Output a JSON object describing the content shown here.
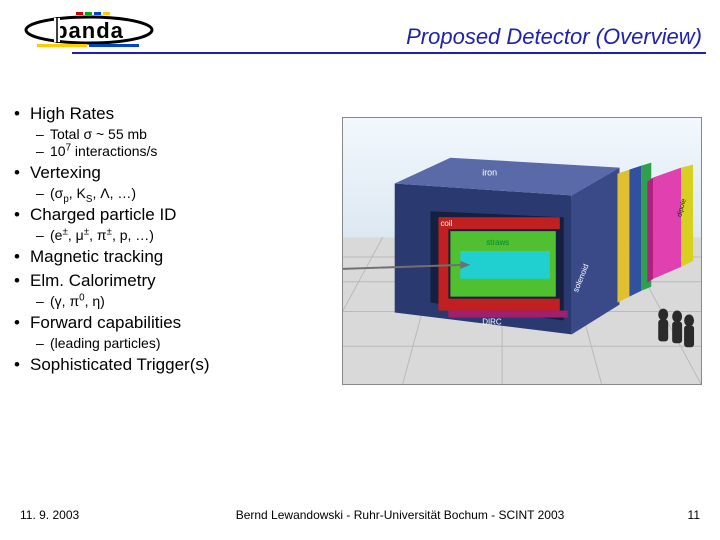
{
  "header": {
    "title": "Proposed Detector (Overview)",
    "title_color": "#2020b0",
    "rule_color": "#2020b0"
  },
  "logo": {
    "text": "panda",
    "bars": [
      "#cc0000",
      "#00aa00",
      "#0044cc",
      "#ffcc00"
    ]
  },
  "bullets": [
    {
      "level": 1,
      "html": "High Rates"
    },
    {
      "level": 2,
      "html": "Total σ ~ 55 mb"
    },
    {
      "level": 2,
      "html": "10<sup>7</sup> interactions/s"
    },
    {
      "level": 1,
      "html": "Vertexing"
    },
    {
      "level": 2,
      "html": "(σ<sub>p</sub>, K<sub>S</sub>, Λ, …)"
    },
    {
      "level": 1,
      "html": "Charged particle ID"
    },
    {
      "level": 2,
      "html": "(e<sup>±</sup>, μ<sup>±</sup>, π<sup>±</sup>, p, …)"
    },
    {
      "level": 1,
      "html": "Magnetic tracking"
    },
    {
      "level": 1,
      "html": "Elm. Calorimetry"
    },
    {
      "level": 2,
      "html": "(γ, π<sup>0</sup>, η)"
    },
    {
      "level": 1,
      "html": "Forward capabilities"
    },
    {
      "level": 2,
      "html": "(leading particles)"
    },
    {
      "level": 1,
      "html": "Sophisticated Trigger(s)"
    }
  ],
  "detector": {
    "labels": {
      "iron": "iron",
      "coil": "coil",
      "straws": "straws",
      "solenoid": "solenoid",
      "dirc": "DIRC",
      "dipole": "dipole"
    },
    "colors": {
      "floor": "#d9d9d9",
      "floor_grid": "#bababa",
      "sky": "#eaf3fb",
      "iron_top": "#5a6aa8",
      "iron_front": "#3a4a88",
      "iron_side": "#2a3a70",
      "coil": "#c02020",
      "straws": "#50c030",
      "inner": "#20d0d0",
      "dirc": "#a02070",
      "cap_yellow": "#e0c030",
      "cap_blue": "#3050a0",
      "cap_green": "#30a050",
      "dipole_pink": "#e040b0",
      "dipole_yellow": "#d8d020",
      "beam": "#707070"
    }
  },
  "footer": {
    "date": "11. 9. 2003",
    "center": "Bernd Lewandowski - Ruhr-Universität Bochum - SCINT 2003",
    "page": "11"
  }
}
